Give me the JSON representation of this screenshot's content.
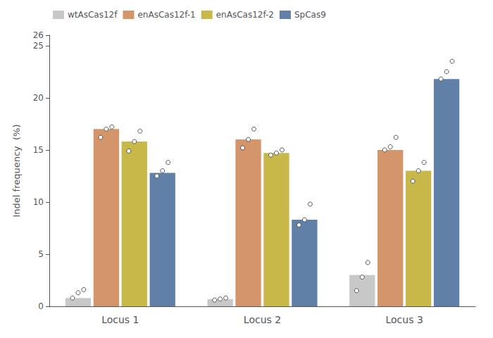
{
  "chart_data": {
    "type": "bar",
    "ylabel": "Indel frequency  (%)",
    "categories": [
      "Locus 1",
      "Locus 2",
      "Locus 3"
    ],
    "series": [
      {
        "name": "wtAsCas12f",
        "color": "#c8c8c8",
        "values": [
          0.8,
          0.7,
          3.0
        ],
        "points": [
          [
            0.8,
            1.3,
            1.6
          ],
          [
            0.6,
            0.7,
            0.8
          ],
          [
            1.5,
            2.8,
            4.2
          ]
        ]
      },
      {
        "name": "enAsCas12f-1",
        "color": "#d4956a",
        "values": [
          17.0,
          16.0,
          15.0
        ],
        "points": [
          [
            16.2,
            17.0,
            17.2
          ],
          [
            15.2,
            16.0,
            17.0
          ],
          [
            15.0,
            15.3,
            16.2
          ]
        ]
      },
      {
        "name": "enAsCas12f-2",
        "color": "#c8b84a",
        "values": [
          15.8,
          14.7,
          13.0
        ],
        "points": [
          [
            14.9,
            15.8,
            16.8
          ],
          [
            14.5,
            14.7,
            15.0
          ],
          [
            12.0,
            13.0,
            13.8
          ]
        ]
      },
      {
        "name": "SpCas9",
        "color": "#6080a8",
        "values": [
          12.8,
          8.3,
          21.8
        ],
        "points": [
          [
            12.5,
            13.0,
            13.8
          ],
          [
            7.8,
            8.3,
            9.8
          ],
          [
            21.8,
            22.5,
            23.5
          ]
        ]
      }
    ],
    "ylim": [
      0,
      26
    ],
    "yticks": [
      0,
      5,
      10,
      15,
      20,
      25
    ],
    "grid": false,
    "legend": "upper left"
  }
}
